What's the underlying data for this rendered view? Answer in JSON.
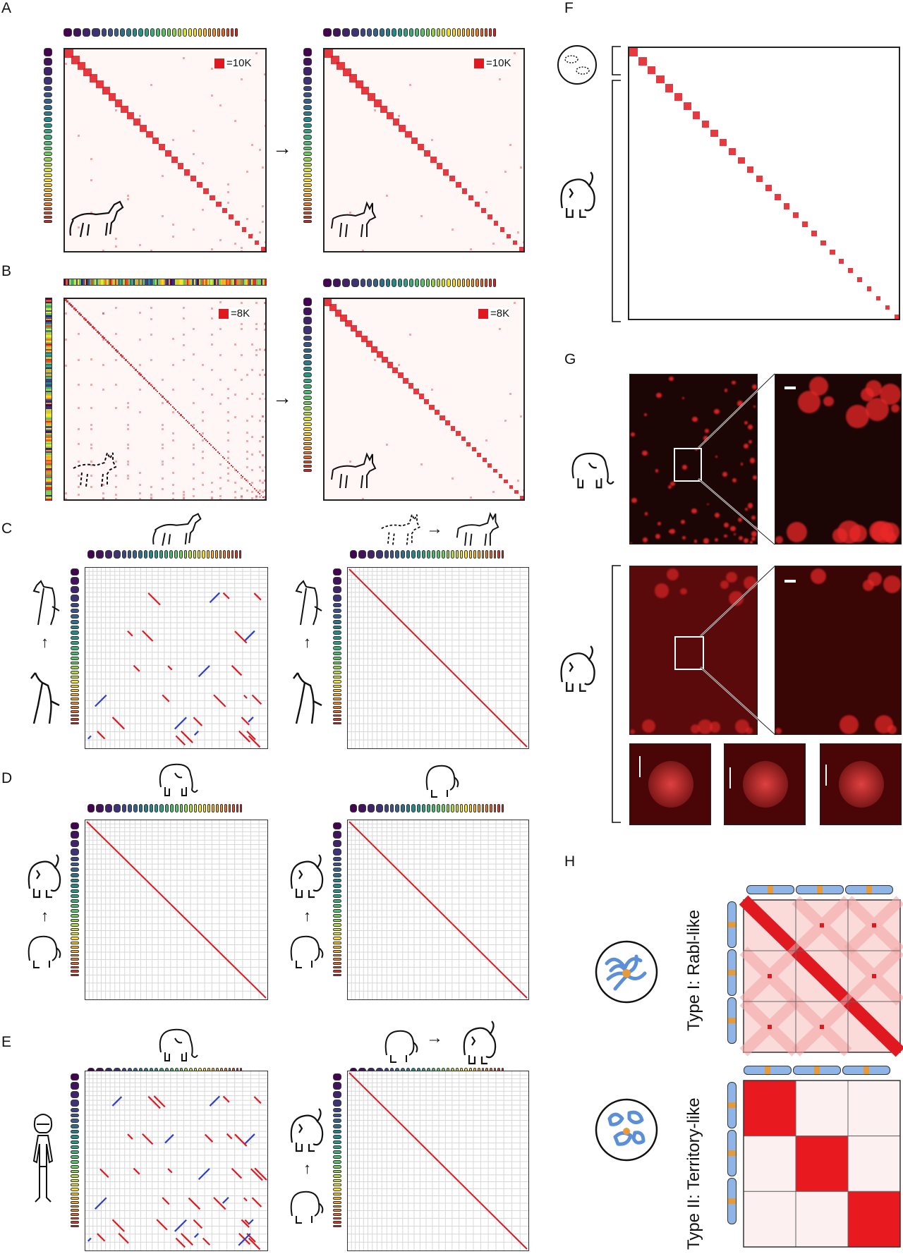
{
  "panels": {
    "A": {
      "letter": "A",
      "legend_left": "=10K",
      "legend_right": "=10K"
    },
    "B": {
      "letter": "B",
      "legend_left": "=8K",
      "legend_right": "=8K"
    },
    "C": {
      "letter": "C"
    },
    "D": {
      "letter": "D"
    },
    "E": {
      "letter": "E"
    },
    "F": {
      "letter": "F"
    },
    "G": {
      "letter": "G"
    },
    "H": {
      "letter": "H",
      "type1_label": "Type I: Rabl-like",
      "type2_label": "Type II: Territory-like"
    }
  },
  "arrows": {
    "right": "→",
    "up": "↑"
  },
  "colors": {
    "contact_red": "#e0181f",
    "inversion_blue": "#2a3fd0",
    "grid_grey": "#d8d8d8",
    "micro_bg": "#1c0505"
  },
  "icons": [
    "horse-icon",
    "donkey-icon",
    "dog-icon",
    "elephant-icon",
    "mammoth-icon",
    "human-icon",
    "cell-icon",
    "nucleus-icon"
  ]
}
